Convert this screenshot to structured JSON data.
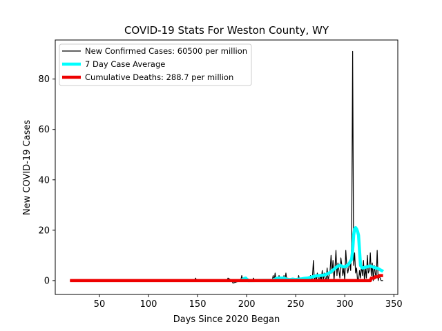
{
  "chart_data": {
    "type": "line",
    "title": "COVID-19 Stats For Weston County, WY",
    "xlabel": "Days Since 2020 Began",
    "ylabel": "New COVID-19 Cases",
    "xlim": [
      5,
      354
    ],
    "ylim": [
      -5.5,
      95.5
    ],
    "xticks": [
      50,
      100,
      150,
      200,
      250,
      300,
      350
    ],
    "yticks": [
      0,
      20,
      40,
      60,
      80
    ],
    "grid": false,
    "legend_position": "top-left",
    "series": [
      {
        "name": "New Confirmed Cases: 60500 per million",
        "color": "#000000",
        "x": [
          20,
          147,
          148,
          149,
          180,
          181,
          185,
          186,
          194,
          195,
          196,
          206,
          207,
          208,
          226,
          227,
          228,
          229,
          230,
          231,
          232,
          233,
          234,
          235,
          236,
          237,
          238,
          239,
          240,
          241,
          242,
          243,
          244,
          252,
          253,
          254,
          255,
          256,
          257,
          262,
          263,
          264,
          265,
          266,
          267,
          268,
          269,
          270,
          271,
          272,
          273,
          274,
          275,
          276,
          277,
          278,
          279,
          280,
          281,
          282,
          283,
          284,
          285,
          286,
          287,
          288,
          289,
          290,
          291,
          292,
          293,
          294,
          295,
          296,
          297,
          298,
          299,
          300,
          301,
          302,
          303,
          304,
          305,
          306,
          307,
          308,
          309,
          310,
          311,
          312,
          313,
          314,
          315,
          316,
          317,
          318,
          319,
          320,
          321,
          322,
          323,
          324,
          325,
          326,
          327,
          328,
          329,
          330,
          331,
          332,
          333,
          334,
          335,
          336,
          337,
          338,
          339
        ],
        "y": [
          0,
          0,
          1,
          0,
          0,
          1,
          0,
          -1,
          0,
          2,
          0,
          0,
          1,
          0,
          0,
          2,
          0,
          3,
          0,
          1,
          0,
          2,
          0,
          1,
          0,
          0,
          2,
          0,
          3,
          0,
          1,
          0,
          0,
          0,
          2,
          0,
          1,
          0,
          0,
          0,
          1,
          0,
          2,
          0,
          1,
          8,
          0,
          2,
          0,
          3,
          1,
          0,
          2,
          0,
          4,
          0,
          3,
          1,
          0,
          5,
          0,
          2,
          4,
          10,
          3,
          8,
          0,
          5,
          12,
          2,
          7,
          4,
          1,
          9,
          6,
          2,
          5,
          0,
          12,
          6,
          3,
          5,
          8,
          4,
          15,
          91,
          6,
          11,
          3,
          5,
          0,
          0,
          4,
          1,
          6,
          2,
          8,
          0,
          5,
          1,
          10,
          3,
          4,
          11,
          2,
          7,
          0,
          6,
          3,
          1,
          12,
          0,
          2,
          1,
          0,
          0,
          0
        ]
      },
      {
        "name": "7 Day Case Average",
        "color": "#00ffff",
        "x": [
          195,
          196,
          197,
          198,
          199,
          200,
          201,
          202,
          226,
          229,
          232,
          235,
          238,
          241,
          244,
          247,
          250,
          253,
          256,
          259,
          262,
          265,
          268,
          271,
          274,
          277,
          280,
          283,
          286,
          289,
          292,
          295,
          298,
          301,
          304,
          307,
          308,
          309,
          310,
          311,
          312,
          313,
          314,
          315,
          316,
          317,
          318,
          320,
          322,
          324,
          326,
          328,
          330,
          332,
          334,
          336,
          338,
          339
        ],
        "y": [
          0.3,
          0.5,
          0.7,
          0.9,
          1.0,
          0.6,
          0.3,
          0,
          0.1,
          0.6,
          1.0,
          1.0,
          1.0,
          0.5,
          0.4,
          0.6,
          0.4,
          0.6,
          0.7,
          0.9,
          1.0,
          1.3,
          1.6,
          1.9,
          2.0,
          2.1,
          2.3,
          2.8,
          3.5,
          4.5,
          5.5,
          6.1,
          5.5,
          5.6,
          6.5,
          8.5,
          12,
          18,
          20.5,
          21,
          20.5,
          19.5,
          18,
          12,
          6,
          5.5,
          5,
          5.2,
          5.4,
          5.6,
          5.8,
          5.5,
          5.2,
          5.0,
          4.8,
          4.3,
          3.9,
          3.6
        ]
      },
      {
        "name": "Cumulative Deaths: 288.7 per million",
        "color": "#ee0000",
        "x": [
          20,
          326,
          327,
          330,
          331,
          334,
          335,
          338,
          339
        ],
        "y": [
          0,
          0,
          1.0,
          1.0,
          1.5,
          1.5,
          2.0,
          2.0,
          2.0
        ]
      }
    ]
  }
}
